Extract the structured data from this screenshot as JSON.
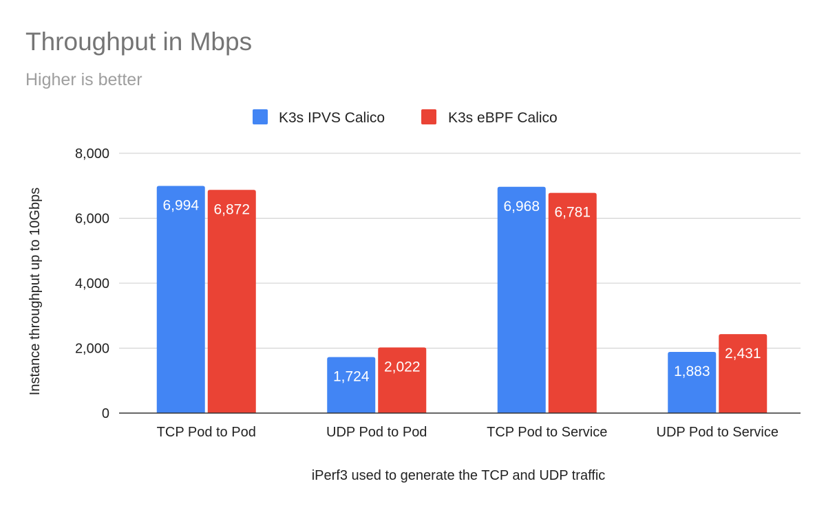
{
  "chart_data": {
    "type": "bar",
    "title": "Throughput in Mbps",
    "subtitle": "Higher is better",
    "xlabel": "iPerf3 used to generate the TCP and UDP traffic",
    "ylabel": "Instance throughput up to 10Gbps",
    "ylim": [
      0,
      8000
    ],
    "yticks": [
      0,
      2000,
      4000,
      6000,
      8000
    ],
    "ytick_labels": [
      "0",
      "2,000",
      "4,000",
      "6,000",
      "8,000"
    ],
    "grid": true,
    "legend_position": "top",
    "categories": [
      "TCP Pod to Pod",
      "UDP Pod to Pod",
      "TCP Pod to Service",
      "UDP Pod to Service"
    ],
    "series": [
      {
        "name": "K3s IPVS Calico",
        "color": "#4285f4",
        "values": [
          6994,
          1724,
          6968,
          1883
        ],
        "labels": [
          "6,994",
          "1,724",
          "6,968",
          "1,883"
        ]
      },
      {
        "name": "K3s eBPF Calico",
        "color": "#ea4335",
        "values": [
          6872,
          2022,
          6781,
          2431
        ],
        "labels": [
          "6,872",
          "2,022",
          "6,781",
          "2,431"
        ]
      }
    ]
  }
}
